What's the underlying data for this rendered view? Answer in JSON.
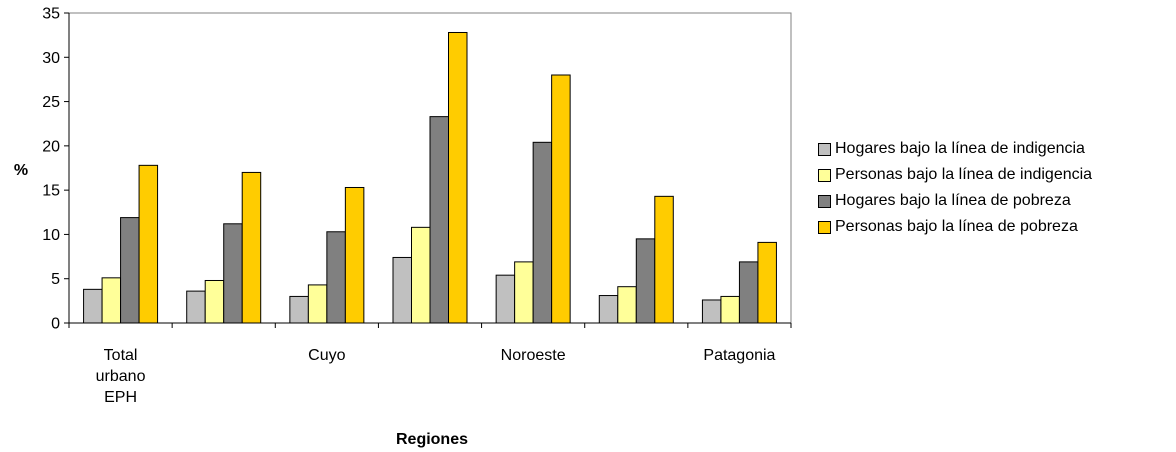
{
  "chart_data": {
    "type": "bar",
    "categories": [
      "Total urbano EPH",
      "",
      "Cuyo",
      "",
      "Noroeste",
      "",
      "Patagonia"
    ],
    "series": [
      {
        "name": "Hogares bajo la línea de indigencia",
        "color": "#c0c0c0",
        "values": [
          3.8,
          3.6,
          3.0,
          7.4,
          5.4,
          3.1,
          2.6
        ]
      },
      {
        "name": "Personas bajo la línea de indigencia",
        "color": "#ffff99",
        "values": [
          5.1,
          4.8,
          4.3,
          10.8,
          6.9,
          4.1,
          3.0
        ]
      },
      {
        "name": "Hogares bajo la línea de pobreza",
        "color": "#808080",
        "values": [
          11.9,
          11.2,
          10.3,
          23.3,
          20.4,
          9.5,
          6.9
        ]
      },
      {
        "name": "Personas bajo la línea de pobreza",
        "color": "#ffcc00",
        "values": [
          17.8,
          17.0,
          15.3,
          32.8,
          28.0,
          14.3,
          9.1
        ]
      }
    ],
    "xlabel": "Regiones",
    "ylabel": "%",
    "ylim": [
      0,
      35
    ],
    "yticks": [
      0,
      5,
      10,
      15,
      20,
      25,
      30,
      35
    ],
    "grid": false,
    "legend_position": "right"
  }
}
